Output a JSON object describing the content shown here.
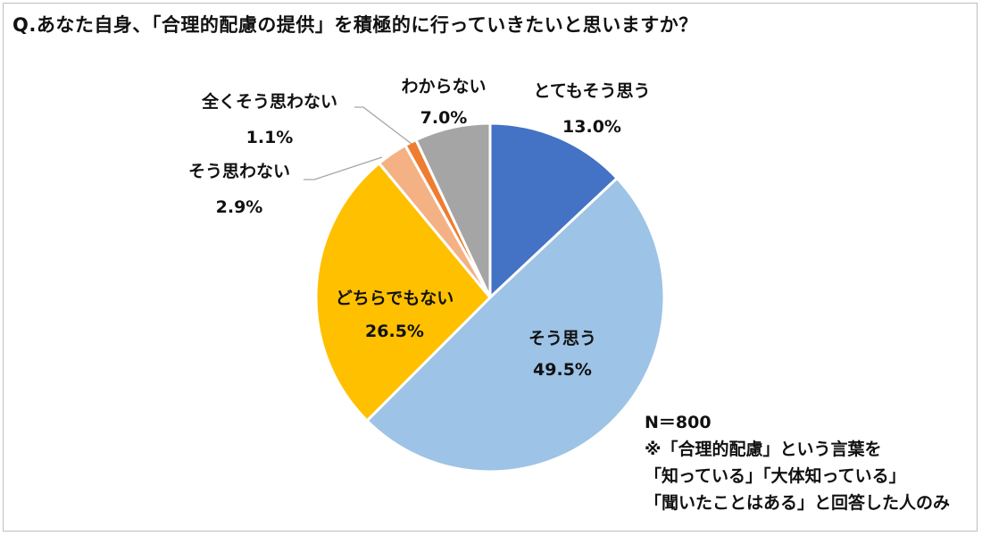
{
  "title": "Q.あなた自身、「合理的配慮の提供」を積極的に行っていきたいと思いますか？",
  "notes": {
    "n": "N＝800",
    "line1": "※「合理的配慮」という言葉を",
    "line2": "「知っている」「大体知っている」",
    "line3": "「聞いたことはある」と回答した人のみ"
  },
  "chart_data": {
    "type": "pie",
    "start": "12 o'clock",
    "direction": "clockwise",
    "slices": [
      {
        "label": "とてもそう思う",
        "value": 13.0,
        "value_label": "13.0%",
        "color": "#4472C4"
      },
      {
        "label": "そう思う",
        "value": 49.5,
        "value_label": "49.5%",
        "color": "#9DC3E6"
      },
      {
        "label": "どちらでもない",
        "value": 26.5,
        "value_label": "26.5%",
        "color": "#FFC000"
      },
      {
        "label": "そう思わない",
        "value": 2.9,
        "value_label": "2.9%",
        "color": "#F4B183"
      },
      {
        "label": "全くそう思わない",
        "value": 1.1,
        "value_label": "1.1%",
        "color": "#ED7D31"
      },
      {
        "label": "わからない",
        "value": 7.0,
        "value_label": "7.0%",
        "color": "#A5A5A5"
      }
    ]
  }
}
